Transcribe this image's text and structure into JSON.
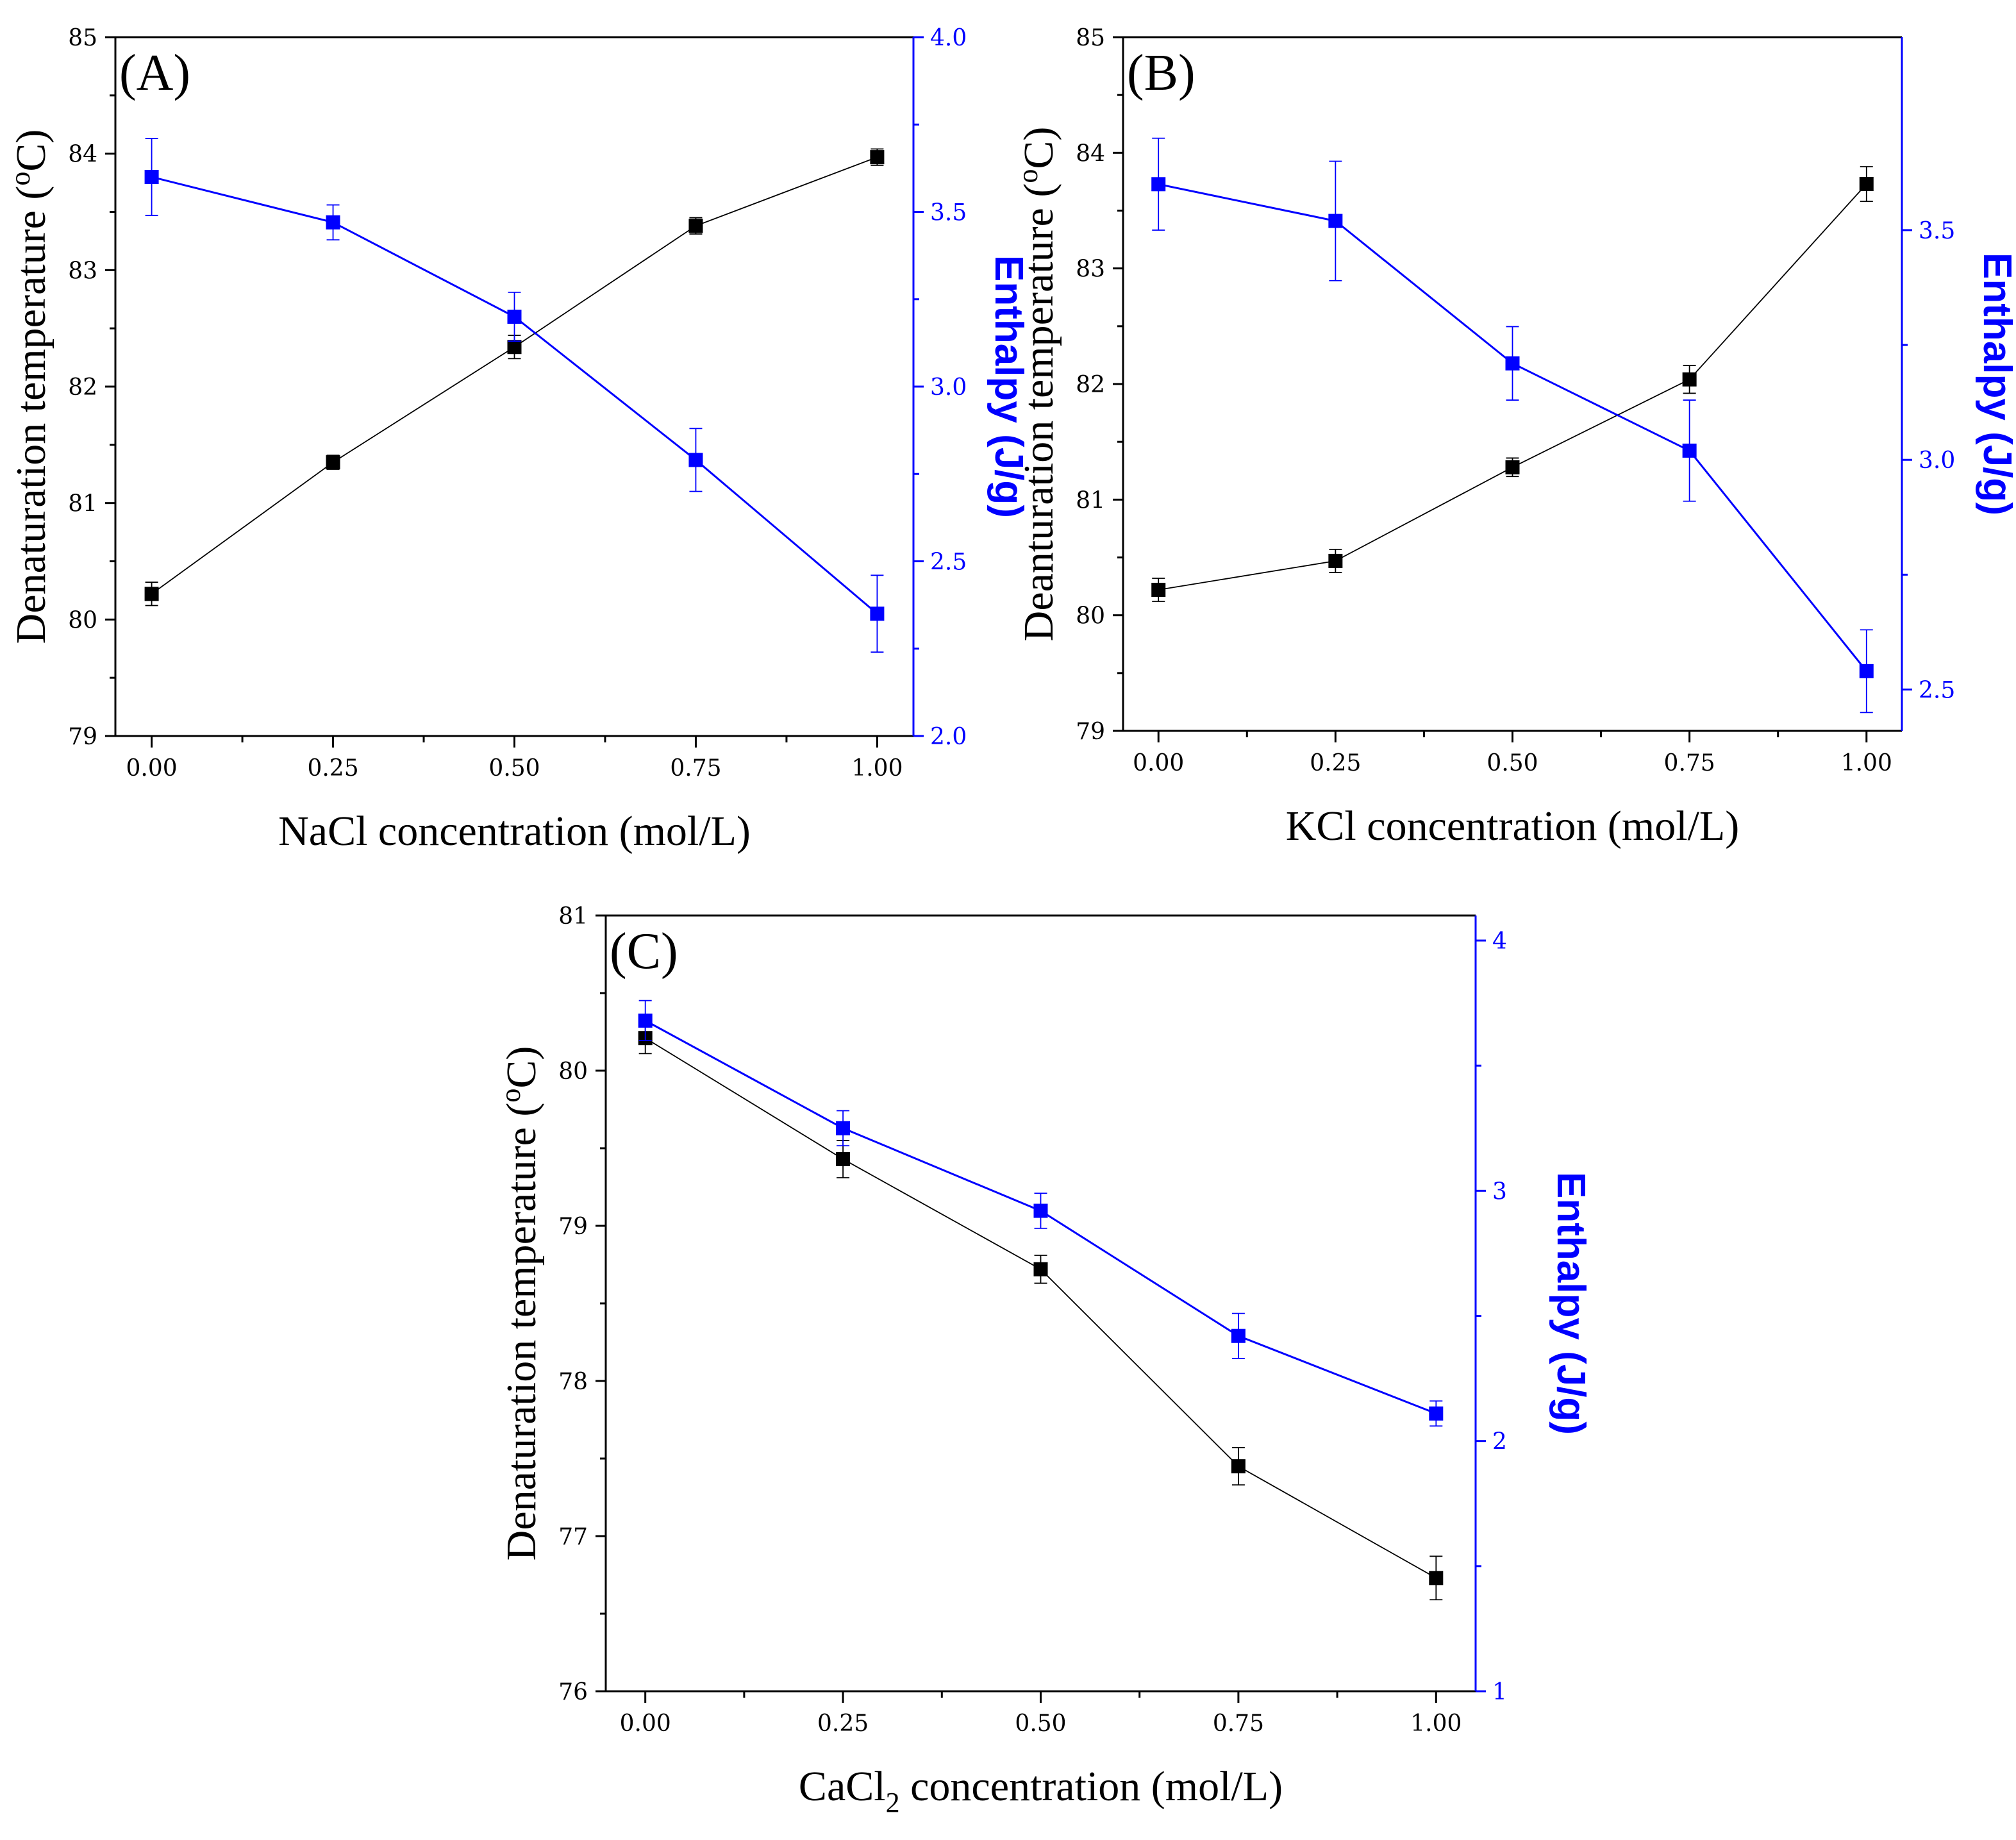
{
  "colors": {
    "temperature": "#000000",
    "enthalpy": "#0000ff",
    "axis": "#000000"
  },
  "chart_data": [
    {
      "type": "line",
      "panel_label": "(A)",
      "xlabel": "NaCl concentration (mol/L)",
      "xlabel_sub": "",
      "xlabel_tail": "",
      "y_left_label": "Denaturation temperature (",
      "y_left_sup": "o",
      "y_left_tail": "C)",
      "y_right_label": "Enthalpy (J/g)",
      "x": [
        0,
        0.25,
        0.5,
        0.75,
        1.0
      ],
      "x_ticks": [
        "0.00",
        "0.25",
        "0.50",
        "0.75",
        "1.00"
      ],
      "xlim": [
        -0.05,
        1.05
      ],
      "y_left_lim": [
        79,
        85
      ],
      "y_left_ticks": [
        "79",
        "80",
        "81",
        "82",
        "83",
        "84",
        "85"
      ],
      "y_right_lim": [
        2.0,
        4.0
      ],
      "y_right_ticks": [
        "2.0",
        "2.5",
        "3.0",
        "3.5",
        "4.0"
      ],
      "series": [
        {
          "name": "Denaturation temperature",
          "axis": "left",
          "values": [
            80.22,
            81.35,
            82.34,
            83.38,
            83.97
          ],
          "errors": [
            0.1,
            0.06,
            0.1,
            0.07,
            0.07
          ]
        },
        {
          "name": "Enthalpy",
          "axis": "right",
          "values": [
            3.6,
            3.47,
            3.2,
            2.79,
            2.35
          ],
          "errors": [
            0.11,
            0.05,
            0.07,
            0.09,
            0.11
          ]
        }
      ]
    },
    {
      "type": "line",
      "panel_label": "(B)",
      "xlabel": "KCl concentration (mol/L)",
      "xlabel_sub": "",
      "xlabel_tail": "",
      "y_left_label": "Deanturation temperature (",
      "y_left_sup": "o",
      "y_left_tail": "C)",
      "y_right_label": "Enthalpy (J/g)",
      "x": [
        0,
        0.25,
        0.5,
        0.75,
        1.0
      ],
      "x_ticks": [
        "0.00",
        "0.25",
        "0.50",
        "0.75",
        "1.00"
      ],
      "xlim": [
        -0.05,
        1.05
      ],
      "y_left_lim": [
        79,
        85
      ],
      "y_left_ticks": [
        "79",
        "80",
        "81",
        "82",
        "83",
        "84",
        "85"
      ],
      "y_right_lim": [
        2.41,
        3.92
      ],
      "y_right_ticks": [
        "2.5",
        "3.0",
        "3.5"
      ],
      "series": [
        {
          "name": "Denaturation temperature",
          "axis": "left",
          "values": [
            80.22,
            80.47,
            81.28,
            82.04,
            83.73
          ],
          "errors": [
            0.1,
            0.1,
            0.08,
            0.12,
            0.15
          ]
        },
        {
          "name": "Enthalpy",
          "axis": "right",
          "values": [
            3.6,
            3.52,
            3.21,
            3.02,
            2.54
          ],
          "errors": [
            0.1,
            0.13,
            0.08,
            0.11,
            0.09
          ]
        }
      ]
    },
    {
      "type": "line",
      "panel_label": "(C)",
      "xlabel": "CaCl",
      "xlabel_sub": "2",
      "xlabel_tail": " concentration (mol/L)",
      "y_left_label": "Denaturation temperature (",
      "y_left_sup": "o",
      "y_left_tail": "C)",
      "y_right_label": "Enthalpy (J/g)",
      "x": [
        0,
        0.25,
        0.5,
        0.75,
        1.0
      ],
      "x_ticks": [
        "0.00",
        "0.25",
        "0.50",
        "0.75",
        "1.00"
      ],
      "xlim": [
        -0.05,
        1.05
      ],
      "y_left_lim": [
        76,
        81
      ],
      "y_left_ticks": [
        "76",
        "77",
        "78",
        "79",
        "80",
        "81"
      ],
      "y_right_lim": [
        1,
        4.1
      ],
      "y_right_ticks": [
        "1",
        "2",
        "3",
        "4"
      ],
      "series": [
        {
          "name": "Denaturation temperature",
          "axis": "left",
          "values": [
            80.21,
            79.43,
            78.72,
            77.45,
            76.73
          ],
          "errors": [
            0.1,
            0.12,
            0.09,
            0.12,
            0.14
          ]
        },
        {
          "name": "Enthalpy",
          "axis": "right",
          "values": [
            3.68,
            3.25,
            2.92,
            2.42,
            2.11
          ],
          "errors": [
            0.08,
            0.07,
            0.07,
            0.09,
            0.05
          ]
        }
      ]
    }
  ]
}
